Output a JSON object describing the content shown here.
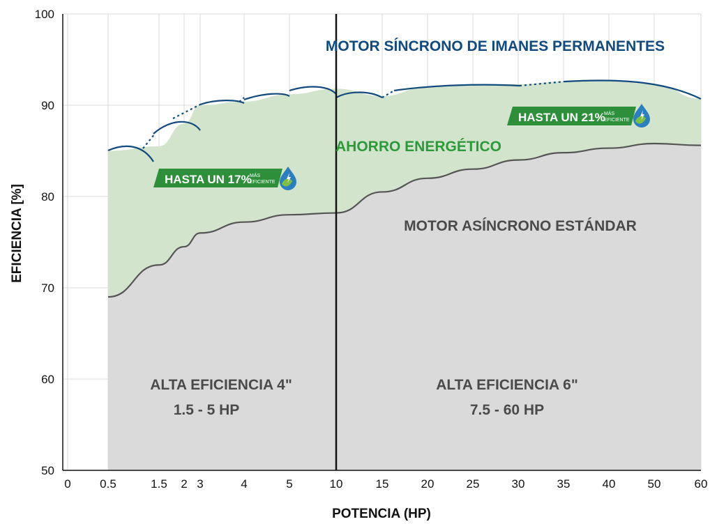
{
  "chart_data": {
    "type": "area",
    "ylabel": "EFICIENCIA [%]",
    "xlabel": "POTENCIA (HP)",
    "ylim": [
      50,
      100
    ],
    "y_ticks": [
      50,
      60,
      70,
      80,
      90,
      100
    ],
    "x_ticks": [
      "0",
      "0.5",
      "1.5",
      "2",
      "3",
      "4",
      "5",
      "10",
      "15",
      "20",
      "25",
      "30",
      "35",
      "40",
      "50",
      "60"
    ],
    "grid": true,
    "divider_at": "10",
    "series": [
      {
        "name": "MOTOR SÍNCRONO DE IMANES PERMANENTES",
        "x": [
          "0.5",
          "1.5",
          "2",
          "3",
          "4",
          "5",
          "10",
          "15",
          "20",
          "25",
          "30",
          "35",
          "40",
          "50",
          "60"
        ],
        "values": [
          85.0,
          85.5,
          88.0,
          90.0,
          90.4,
          91.2,
          91.8,
          91.0,
          92.0,
          92.2,
          92.3,
          92.6,
          92.7,
          92.3,
          90.7
        ]
      },
      {
        "name": "MOTOR ASÍNCRONO ESTÁNDAR",
        "x": [
          "0.5",
          "1.5",
          "2",
          "3",
          "4",
          "5",
          "10",
          "15",
          "20",
          "25",
          "30",
          "35",
          "40",
          "50",
          "60"
        ],
        "values": [
          69.0,
          72.5,
          74.5,
          76.0,
          77.2,
          78.0,
          78.2,
          80.5,
          82.0,
          83.0,
          84.0,
          84.8,
          85.3,
          85.8,
          85.6
        ]
      }
    ],
    "annotations": {
      "pm_label": "MOTOR SÍNCRONO DE IMANES PERMANENTES",
      "saving_label": "AHORRO ENERGÉTICO",
      "async_label": "MOTOR ASÍNCRONO ESTÁNDAR",
      "left_region_line1": "ALTA EFICIENCIA 4\"",
      "left_region_line2": "1.5 - 5 HP",
      "right_region_line1": "ALTA EFICIENCIA 6\"",
      "right_region_line2": "7.5 - 60 HP",
      "badge_left_main": "HASTA UN 17%",
      "badge_right_main": "HASTA UN 21%",
      "badge_small_1": "MÁS",
      "badge_small_2": "EFICIENTE"
    },
    "colors": {
      "saving_fill": "#d2e4cc",
      "async_fill": "#dadada",
      "pm_line": "#114a7e",
      "async_line": "#555555",
      "badge": "#2d8f3a",
      "drop": "#2a7fc1"
    }
  }
}
